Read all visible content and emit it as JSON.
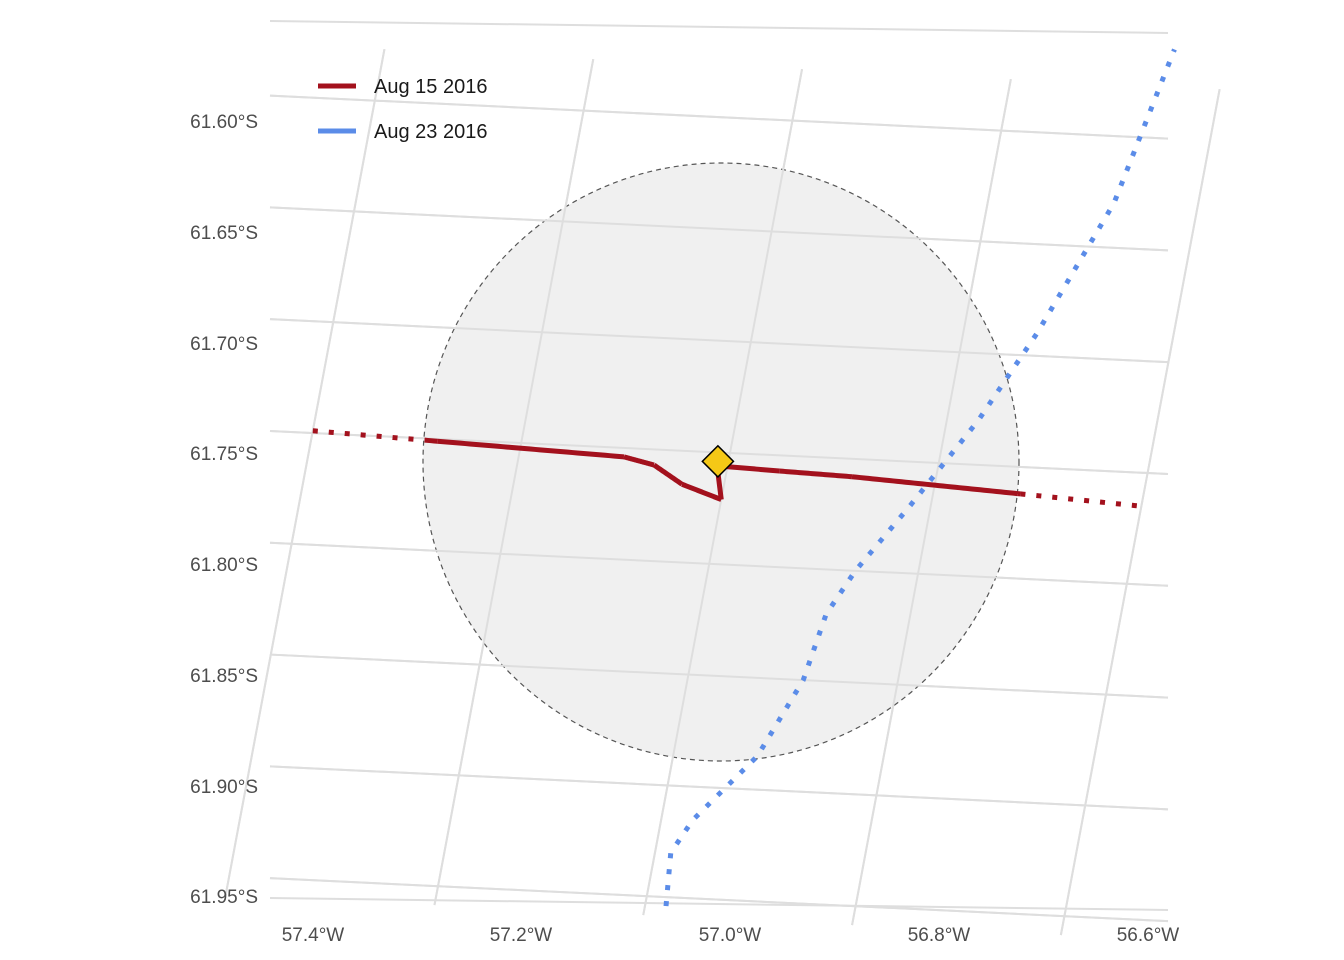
{
  "legend": {
    "items": [
      {
        "label": "Aug 15 2016",
        "color": "#a3111d"
      },
      {
        "label": "Aug 23 2016",
        "color": "#5b8ce8"
      }
    ]
  },
  "axes": {
    "x_ticks": [
      "57.4°W",
      "57.2°W",
      "57.0°W",
      "56.8°W",
      "56.6°W"
    ],
    "y_ticks": [
      "61.60°S",
      "61.65°S",
      "61.70°S",
      "61.75°S",
      "61.80°S",
      "61.85°S",
      "61.90°S",
      "61.95°S"
    ]
  },
  "chart_data": {
    "type": "map",
    "x_tick_values": [
      -57.4,
      -57.2,
      -57.0,
      -56.8,
      -56.6
    ],
    "y_tick_values": [
      -61.6,
      -61.65,
      -61.7,
      -61.75,
      -61.8,
      -61.85,
      -61.9,
      -61.95
    ],
    "center": {
      "lon": -57.01,
      "lat": -61.754,
      "marker": "diamond",
      "color": "#f5c816"
    },
    "circle": {
      "radius_deg_lat": 0.135,
      "fill": "#f0f0f0",
      "stroke": "#555555",
      "dashed": true
    },
    "tracks": [
      {
        "name": "Aug 15 2016",
        "color": "#a3111d",
        "style": "solid-inside-dotted-outside",
        "lonlat": [
          [
            -57.4,
            -61.749
          ],
          [
            -57.28,
            -61.751
          ],
          [
            -57.1,
            -61.754
          ],
          [
            -57.07,
            -61.757
          ],
          [
            -57.04,
            -61.765
          ],
          [
            -57.0,
            -61.771
          ],
          [
            -57.01,
            -61.756
          ],
          [
            -56.95,
            -61.757
          ],
          [
            -56.88,
            -61.758
          ],
          [
            -56.72,
            -61.762
          ],
          [
            -56.6,
            -61.765
          ]
        ]
      },
      {
        "name": "Aug 23 2016",
        "color": "#5b8ce8",
        "style": "dotted",
        "lonlat": [
          [
            -56.98,
            -61.954
          ],
          [
            -56.985,
            -61.93
          ],
          [
            -56.97,
            -61.915
          ],
          [
            -56.92,
            -61.885
          ],
          [
            -56.89,
            -61.85
          ],
          [
            -56.88,
            -61.82
          ],
          [
            -56.86,
            -61.8
          ],
          [
            -56.82,
            -61.77
          ],
          [
            -56.77,
            -61.73
          ],
          [
            -56.73,
            -61.69
          ],
          [
            -56.68,
            -61.63
          ],
          [
            -56.65,
            -61.56
          ]
        ]
      }
    ]
  }
}
